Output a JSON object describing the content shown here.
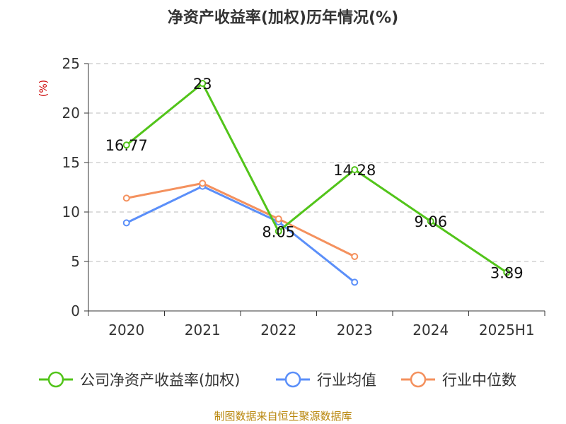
{
  "chart_data": {
    "type": "line",
    "title": "净资产收益率(加权)历年情况(%)",
    "ylabel": "(%)",
    "categories": [
      "2020",
      "2021",
      "2022",
      "2023",
      "2024",
      "2025H1"
    ],
    "ylim": [
      0,
      25
    ],
    "yticks": [
      0,
      5,
      10,
      15,
      20,
      25
    ],
    "grid": true,
    "legend_position": "bottom",
    "series": [
      {
        "name": "公司净资产收益率(加权)",
        "color": "#52c41a",
        "values": [
          16.77,
          23,
          8.05,
          14.28,
          9.06,
          3.89
        ],
        "labels": [
          "16.77",
          "23",
          "8.05",
          "14.28",
          "9.06",
          "3.89"
        ]
      },
      {
        "name": "行业均值",
        "color": "#5b8ff9",
        "values": [
          8.9,
          12.6,
          9.0,
          2.9,
          null,
          null
        ]
      },
      {
        "name": "行业中位数",
        "color": "#f4915e",
        "values": [
          11.4,
          12.9,
          9.3,
          5.5,
          null,
          null
        ]
      }
    ]
  },
  "source": "制图数据来自恒生聚源数据库"
}
